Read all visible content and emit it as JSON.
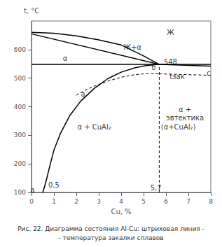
{
  "chart_data": {
    "type": "line",
    "title": "Рис. 22. Диаграмма состояния Al-Cu: штриховая линия -\n- температура закалки сплавов",
    "xlabel": "Cu, %",
    "ylabel": "t, °C",
    "xlim": [
      0,
      8
    ],
    "ylim": [
      100,
      700
    ],
    "xticks": [
      0,
      1,
      2,
      3,
      4,
      5,
      6,
      7,
      8
    ],
    "yticks": [
      100,
      200,
      300,
      400,
      500,
      600
    ],
    "grid": false,
    "series": [
      {
        "color": "#000000",
        "line_style": "solid",
        "x": [
          0,
          1,
          2,
          3,
          4,
          5,
          5.7
        ],
        "values": [
          660,
          657,
          648,
          634,
          616,
          578,
          548
        ]
      },
      {
        "color": "#000000",
        "line_style": "solid",
        "x": [
          5.7,
          8
        ],
        "values": [
          548,
          542
        ]
      },
      {
        "color": "#000000",
        "line_style": "solid",
        "x": [
          0,
          5.7
        ],
        "values": [
          655,
          548
        ]
      },
      {
        "color": "#000000",
        "line_style": "solid",
        "x": [
          0.5,
          0.6,
          0.7,
          0.8,
          1.0,
          1.3,
          1.7,
          2.2,
          2.8,
          3.4,
          4.0,
          4.6,
          5.1,
          5.5,
          5.7
        ],
        "values": [
          100,
          125,
          155,
          188,
          248,
          308,
          368,
          420,
          464,
          498,
          521,
          536,
          544,
          547,
          548
        ]
      },
      {
        "color": "#000000",
        "line_style": "solid",
        "x": [
          0,
          8
        ],
        "values": [
          548,
          548
        ]
      },
      {
        "color": "#000000",
        "line_style": "dashed",
        "x": [
          5.7,
          5.7
        ],
        "values": [
          100,
          548
        ]
      },
      {
        "color": "#000000",
        "line_style": "dashed",
        "x": [
          5.7,
          8
        ],
        "values": [
          515,
          510
        ]
      },
      {
        "color": "#000000",
        "line_style": "dashed",
        "x": [
          2.0,
          2.5,
          3.0,
          3.5,
          4.0,
          4.5,
          5.0,
          5.4,
          5.7
        ],
        "values": [
          440,
          462,
          478,
          492,
          503,
          511,
          515,
          516,
          515
        ]
      }
    ],
    "annotations": [
      {
        "text": "Ж",
        "x": 6.2,
        "y": 660
      },
      {
        "text": "Ж+α",
        "x": 4.5,
        "y": 608
      },
      {
        "text": "548",
        "x": 6.2,
        "y": 556
      },
      {
        "text": "α",
        "x": 1.5,
        "y": 570
      },
      {
        "text": "α + CuAl₂",
        "x": 2.8,
        "y": 330
      },
      {
        "text": "α +",
        "x": 6.85,
        "y": 390
      },
      {
        "text": "эвтектика",
        "x": 6.85,
        "y": 360
      },
      {
        "text": "(α+CuAl₂)",
        "x": 6.55,
        "y": 330
      },
      {
        "text": "a",
        "x": 0.05,
        "y": 108
      },
      {
        "text": "б",
        "x": 5.45,
        "y": 536
      },
      {
        "text": "c",
        "x": 7.9,
        "y": 517
      },
      {
        "text": "а",
        "x": 2.3,
        "y": 445
      },
      {
        "text": "tзак",
        "x": 6.5,
        "y": 505
      },
      {
        "text": "0,5",
        "x": 1.0,
        "y": 125
      },
      {
        "text": "5,7",
        "x": 5.55,
        "y": 115
      }
    ]
  }
}
